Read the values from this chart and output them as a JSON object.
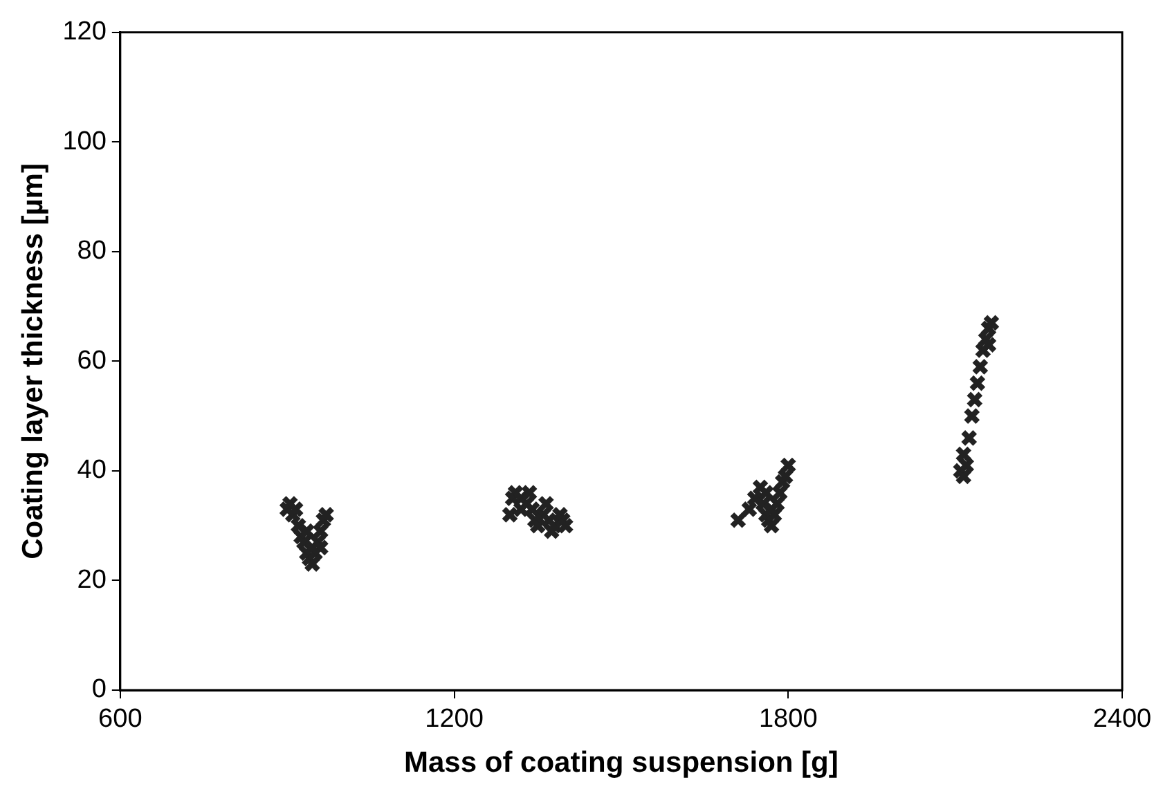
{
  "chart_data": {
    "type": "scatter",
    "xlabel": "Mass of coating suspension [g]",
    "ylabel": "Coating layer thickness [µm]",
    "xlim": [
      600,
      2400
    ],
    "xticks": [
      600,
      1200,
      1800,
      2400
    ],
    "ylim": [
      0,
      120
    ],
    "yticks": [
      0,
      20,
      40,
      60,
      80,
      100,
      120
    ],
    "grid": false,
    "legend": false,
    "marker": "cross",
    "series": [
      {
        "color": "#222222",
        "x": [
          900,
          905,
          910,
          915,
          920,
          925,
          930,
          935,
          940,
          945,
          950,
          955,
          960,
          965,
          970,
          960,
          935,
          945,
          1300,
          1305,
          1310,
          1320,
          1330,
          1340,
          1345,
          1350,
          1360,
          1365,
          1370,
          1375,
          1380,
          1390,
          1395,
          1400,
          1320,
          1335,
          1710,
          1730,
          1740,
          1750,
          1755,
          1760,
          1765,
          1770,
          1775,
          1780,
          1785,
          1790,
          1795,
          1800,
          1760,
          1770,
          2110,
          2115,
          2120,
          2115,
          2125,
          2130,
          2135,
          2140,
          2145,
          2150,
          2155,
          2160,
          2165,
          2160
        ],
        "values": [
          33,
          34,
          32,
          33,
          30,
          28,
          27,
          25,
          24,
          23,
          25,
          27,
          29,
          31,
          32,
          26,
          29,
          26,
          32,
          35,
          36,
          35,
          34,
          33,
          31,
          30,
          32,
          34,
          31,
          29,
          30,
          32,
          31,
          30,
          33,
          36,
          31,
          33,
          35,
          37,
          34,
          32,
          31,
          30,
          32,
          34,
          36,
          38,
          39,
          41,
          36,
          33,
          40,
          39,
          41,
          43,
          46,
          50,
          53,
          56,
          59,
          62,
          64,
          66,
          67,
          63
        ]
      }
    ]
  }
}
